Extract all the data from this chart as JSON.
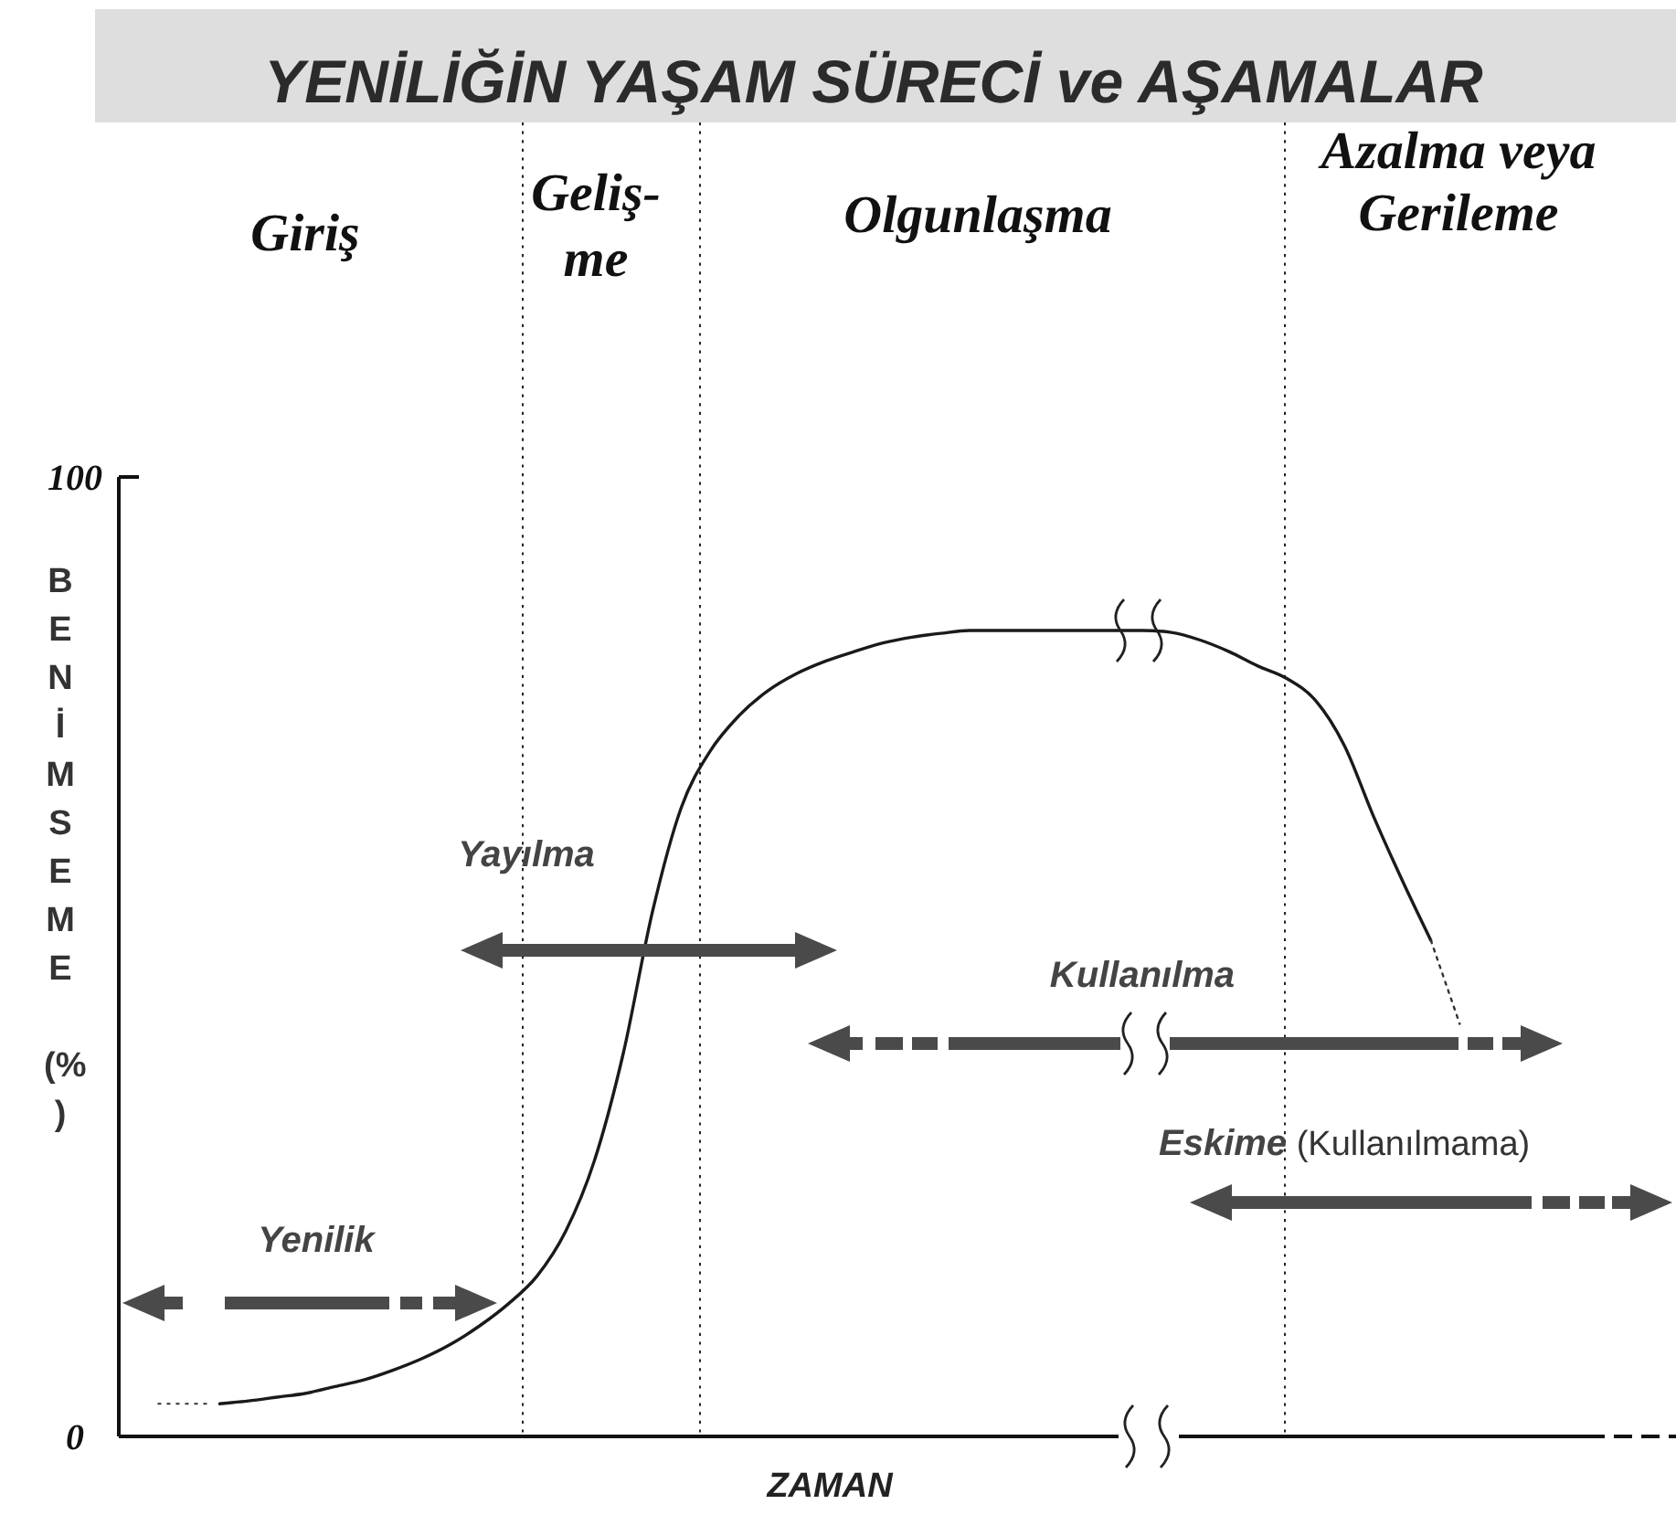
{
  "chart_data": {
    "type": "line",
    "title": "YENİLİĞİN YAŞAM SÜRECİ ve AŞAMALAR",
    "xlabel": "ZAMAN",
    "ylabel": "BENİMSEME (%)",
    "categories": [
      null,
      null,
      null,
      null,
      null,
      null,
      null,
      null,
      null,
      null,
      null,
      null,
      null,
      null,
      null,
      null,
      null,
      null,
      null,
      null,
      null,
      null,
      null,
      null,
      null,
      null,
      null,
      null,
      null,
      null,
      null,
      null,
      null,
      null,
      null,
      null,
      null,
      null,
      null,
      null,
      null,
      null,
      null,
      null,
      null,
      null,
      null,
      null,
      null,
      null,
      null,
      null,
      null,
      null
    ],
    "series": [
      {
        "color": "#1a1a1a",
        "values": [
          null,
          null,
          null,
          3.4,
          3.7,
          4.1,
          4.5,
          5.2,
          5.9,
          6.9,
          8.1,
          9.6,
          11.5,
          13.8,
          16.7,
          21.4,
          28.8,
          40,
          54.6,
          65.5,
          71.4,
          75.1,
          77.7,
          79.5,
          80.8,
          81.8,
          82.7,
          83.3,
          83.7,
          84,
          84,
          84,
          84,
          84,
          84,
          84,
          83.8,
          83,
          81.8,
          80.3,
          79,
          76.7,
          72,
          64.7,
          58,
          51.7,
          null,
          null,
          null,
          null,
          null,
          null,
          null,
          null
        ]
      },
      {
        "color": "#333333",
        "line_style": "dotted",
        "values": [
          null,
          null,
          null,
          null,
          null,
          null,
          null,
          null,
          null,
          null,
          null,
          null,
          null,
          null,
          null,
          null,
          null,
          null,
          null,
          null,
          null,
          null,
          null,
          null,
          null,
          null,
          null,
          null,
          null,
          null,
          null,
          null,
          null,
          null,
          null,
          null,
          null,
          null,
          null,
          null,
          null,
          null,
          null,
          null,
          null,
          51.7,
          43,
          null,
          null,
          null,
          null,
          null,
          null,
          null
        ]
      }
    ],
    "ylim": [
      0,
      100
    ],
    "yticks": [
      0,
      100
    ],
    "tick_labels": "y",
    "annotations": [
      "Giriş",
      "Geliş-\nme",
      "Olgunlaşma",
      "Azalma veya\nGerileme",
      "Yenilik",
      "Yayılma",
      "Kullanılma",
      "Eskime",
      "(Kullanılmama)"
    ]
  }
}
